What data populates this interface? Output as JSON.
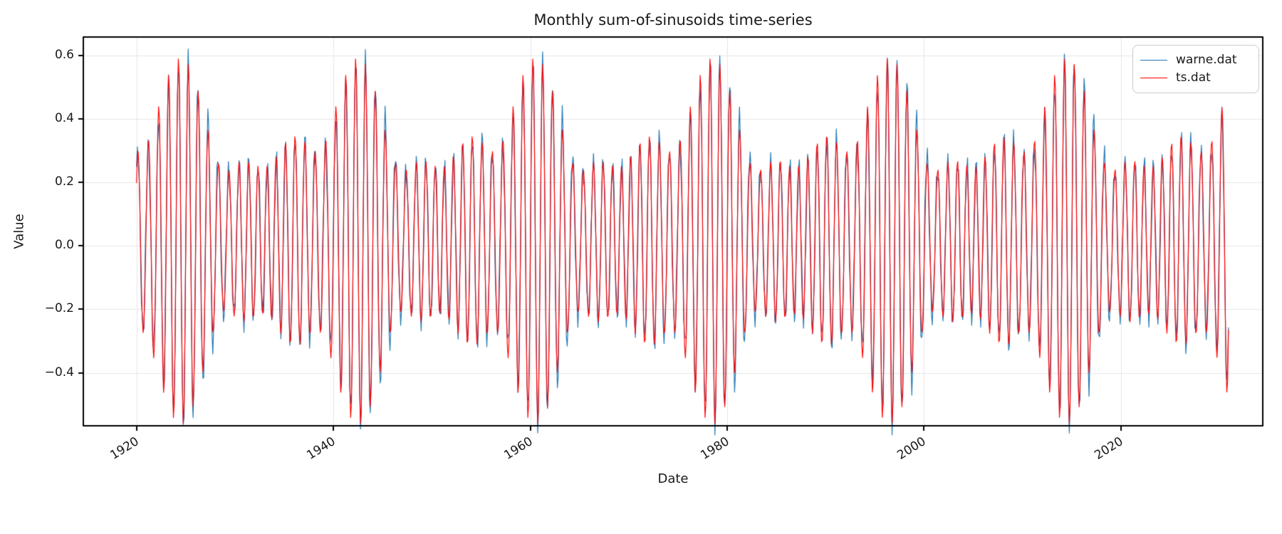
{
  "figure": {
    "background": "#ffffff",
    "text_color": "#1a1a1a",
    "frame_color": "#000000"
  },
  "chart_data": {
    "type": "line",
    "title": "Monthly sum-of-sinusoids time-series",
    "xlabel": "Date",
    "ylabel": "Value",
    "xlim": [
      1914.6,
      2034.4
    ],
    "ylim": [
      -0.567,
      0.658
    ],
    "x_ticks": [
      {
        "value": 1920,
        "label": "1920"
      },
      {
        "value": 1940,
        "label": "1940"
      },
      {
        "value": 1960,
        "label": "1960"
      },
      {
        "value": 1980,
        "label": "1980"
      },
      {
        "value": 2000,
        "label": "2000"
      },
      {
        "value": 2020,
        "label": "2020"
      }
    ],
    "y_ticks": [
      {
        "value": -0.4,
        "label": "−0.4"
      },
      {
        "value": -0.2,
        "label": "−0.2"
      },
      {
        "value": 0.0,
        "label": "0.0"
      },
      {
        "value": 0.2,
        "label": "0.2"
      },
      {
        "value": 0.4,
        "label": "0.4"
      },
      {
        "value": 0.6,
        "label": "0.6"
      }
    ],
    "grid": {
      "visible": true,
      "color": "#e6e6e6",
      "linewidth": 1
    },
    "legend": {
      "position": "upper right"
    },
    "sampling": {
      "start_year": 1920,
      "points_per_year": 12,
      "n_points": 1332,
      "phase_reference_year": 1920
    },
    "value_range_observed": {
      "min": -0.51,
      "max": 0.59
    },
    "series": [
      {
        "name": "warne.dat",
        "color": "#1f77b4",
        "linewidth": 1.0,
        "offset": 0.015,
        "components": [
          {
            "period_years": 1.0,
            "amplitude": 0.3,
            "phase_rad": 0.0
          },
          {
            "period_years": 1.0588,
            "amplitude": 0.17,
            "phase_rad": 1.52
          },
          {
            "period_years": 0.9,
            "amplitude": 0.11,
            "phase_rad": 2.78
          },
          {
            "period_years": 0.29,
            "amplitude": 0.035,
            "phase_rad": 0.8
          }
        ]
      },
      {
        "name": "ts.dat",
        "color": "#ff0000",
        "linewidth": 1.0,
        "offset": 0.015,
        "components": [
          {
            "period_years": 1.0,
            "amplitude": 0.3,
            "phase_rad": 0.0
          },
          {
            "period_years": 1.0588,
            "amplitude": 0.17,
            "phase_rad": 1.396
          },
          {
            "period_years": 0.9,
            "amplitude": 0.11,
            "phase_rad": 3.0
          }
        ]
      }
    ]
  }
}
